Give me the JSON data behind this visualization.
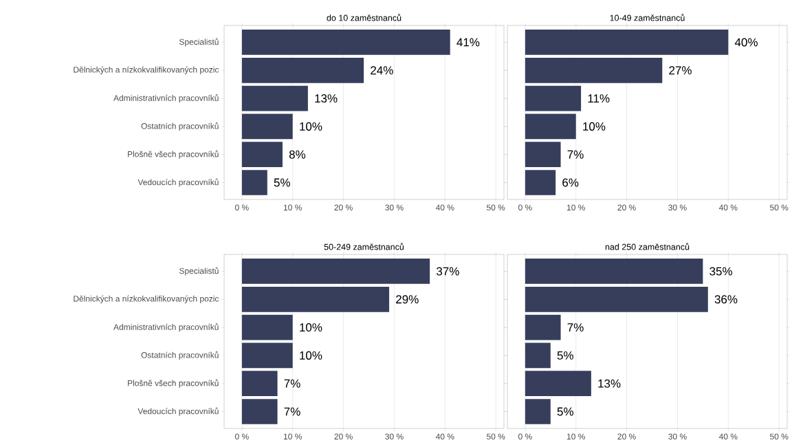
{
  "chart_data": [
    {
      "type": "bar",
      "orientation": "horizontal",
      "title": "do 10 zaměstnanců",
      "categories": [
        "Specialistů",
        "Dělnických a nízkokvalifikovaných pozic",
        "Administrativních pracovníků",
        "Ostatních pracovníků",
        "Plošně všech pracovníků",
        "Vedoucích pracovníků"
      ],
      "values": [
        41,
        24,
        13,
        10,
        8,
        5
      ],
      "value_labels": [
        "41%",
        "24%",
        "13%",
        "10%",
        "8%",
        "5%"
      ],
      "color": "#363e5c",
      "xlim": [
        -3.5,
        51.6
      ],
      "xticks": [
        {
          "value": 0,
          "label": "0 %"
        },
        {
          "value": 10,
          "label": "10 %"
        },
        {
          "value": 20,
          "label": "20 %"
        },
        {
          "value": 30,
          "label": "30 %"
        },
        {
          "value": 40,
          "label": "40 %"
        },
        {
          "value": 50,
          "label": "50 %"
        }
      ],
      "grid": "x"
    },
    {
      "type": "bar",
      "orientation": "horizontal",
      "title": "10-49 zaměstnanců",
      "categories": [
        null,
        null,
        null,
        null,
        null,
        null
      ],
      "values": [
        40,
        27,
        11,
        10,
        7,
        6
      ],
      "value_labels": [
        "40%",
        "27%",
        "11%",
        "10%",
        "7%",
        "6%"
      ],
      "color": "#363e5c",
      "xlim": [
        -3.5,
        51.6
      ],
      "xticks": [
        {
          "value": 0,
          "label": "0 %"
        },
        {
          "value": 10,
          "label": "10 %"
        },
        {
          "value": 20,
          "label": "20 %"
        },
        {
          "value": 30,
          "label": "30 %"
        },
        {
          "value": 40,
          "label": "40 %"
        },
        {
          "value": 50,
          "label": "50 %"
        }
      ],
      "grid": "x",
      "tick_labels": "x"
    },
    {
      "type": "bar",
      "orientation": "horizontal",
      "title": "50-249 zaměstnanců",
      "categories": [
        "Specialistů",
        "Dělnických a nízkokvalifikovaných pozic",
        "Administrativních pracovníků",
        "Ostatních pracovníků",
        "Plošně všech pracovníků",
        "Vedoucích pracovníků"
      ],
      "values": [
        37,
        29,
        10,
        10,
        7,
        7
      ],
      "value_labels": [
        "37%",
        "29%",
        "10%",
        "10%",
        "7%",
        "7%"
      ],
      "color": "#363e5c",
      "xlim": [
        -3.5,
        51.6
      ],
      "xticks": [
        {
          "value": 0,
          "label": "0 %"
        },
        {
          "value": 10,
          "label": "10 %"
        },
        {
          "value": 20,
          "label": "20 %"
        },
        {
          "value": 30,
          "label": "30 %"
        },
        {
          "value": 40,
          "label": "40 %"
        },
        {
          "value": 50,
          "label": "50 %"
        }
      ],
      "grid": "x"
    },
    {
      "type": "bar",
      "orientation": "horizontal",
      "title": "nad 250 zaměstnanců",
      "categories": [
        null,
        null,
        null,
        null,
        null,
        null
      ],
      "values": [
        35,
        36,
        7,
        5,
        13,
        5
      ],
      "value_labels": [
        "35%",
        "36%",
        "7%",
        "5%",
        "13%",
        "5%"
      ],
      "color": "#363e5c",
      "xlim": [
        -3.5,
        51.6
      ],
      "xticks": [
        {
          "value": 0,
          "label": "0 %"
        },
        {
          "value": 10,
          "label": "10 %"
        },
        {
          "value": 20,
          "label": "20 %"
        },
        {
          "value": 30,
          "label": "30 %"
        },
        {
          "value": 40,
          "label": "40 %"
        },
        {
          "value": 50,
          "label": "50 %"
        }
      ],
      "grid": "x",
      "tick_labels": "x"
    }
  ]
}
